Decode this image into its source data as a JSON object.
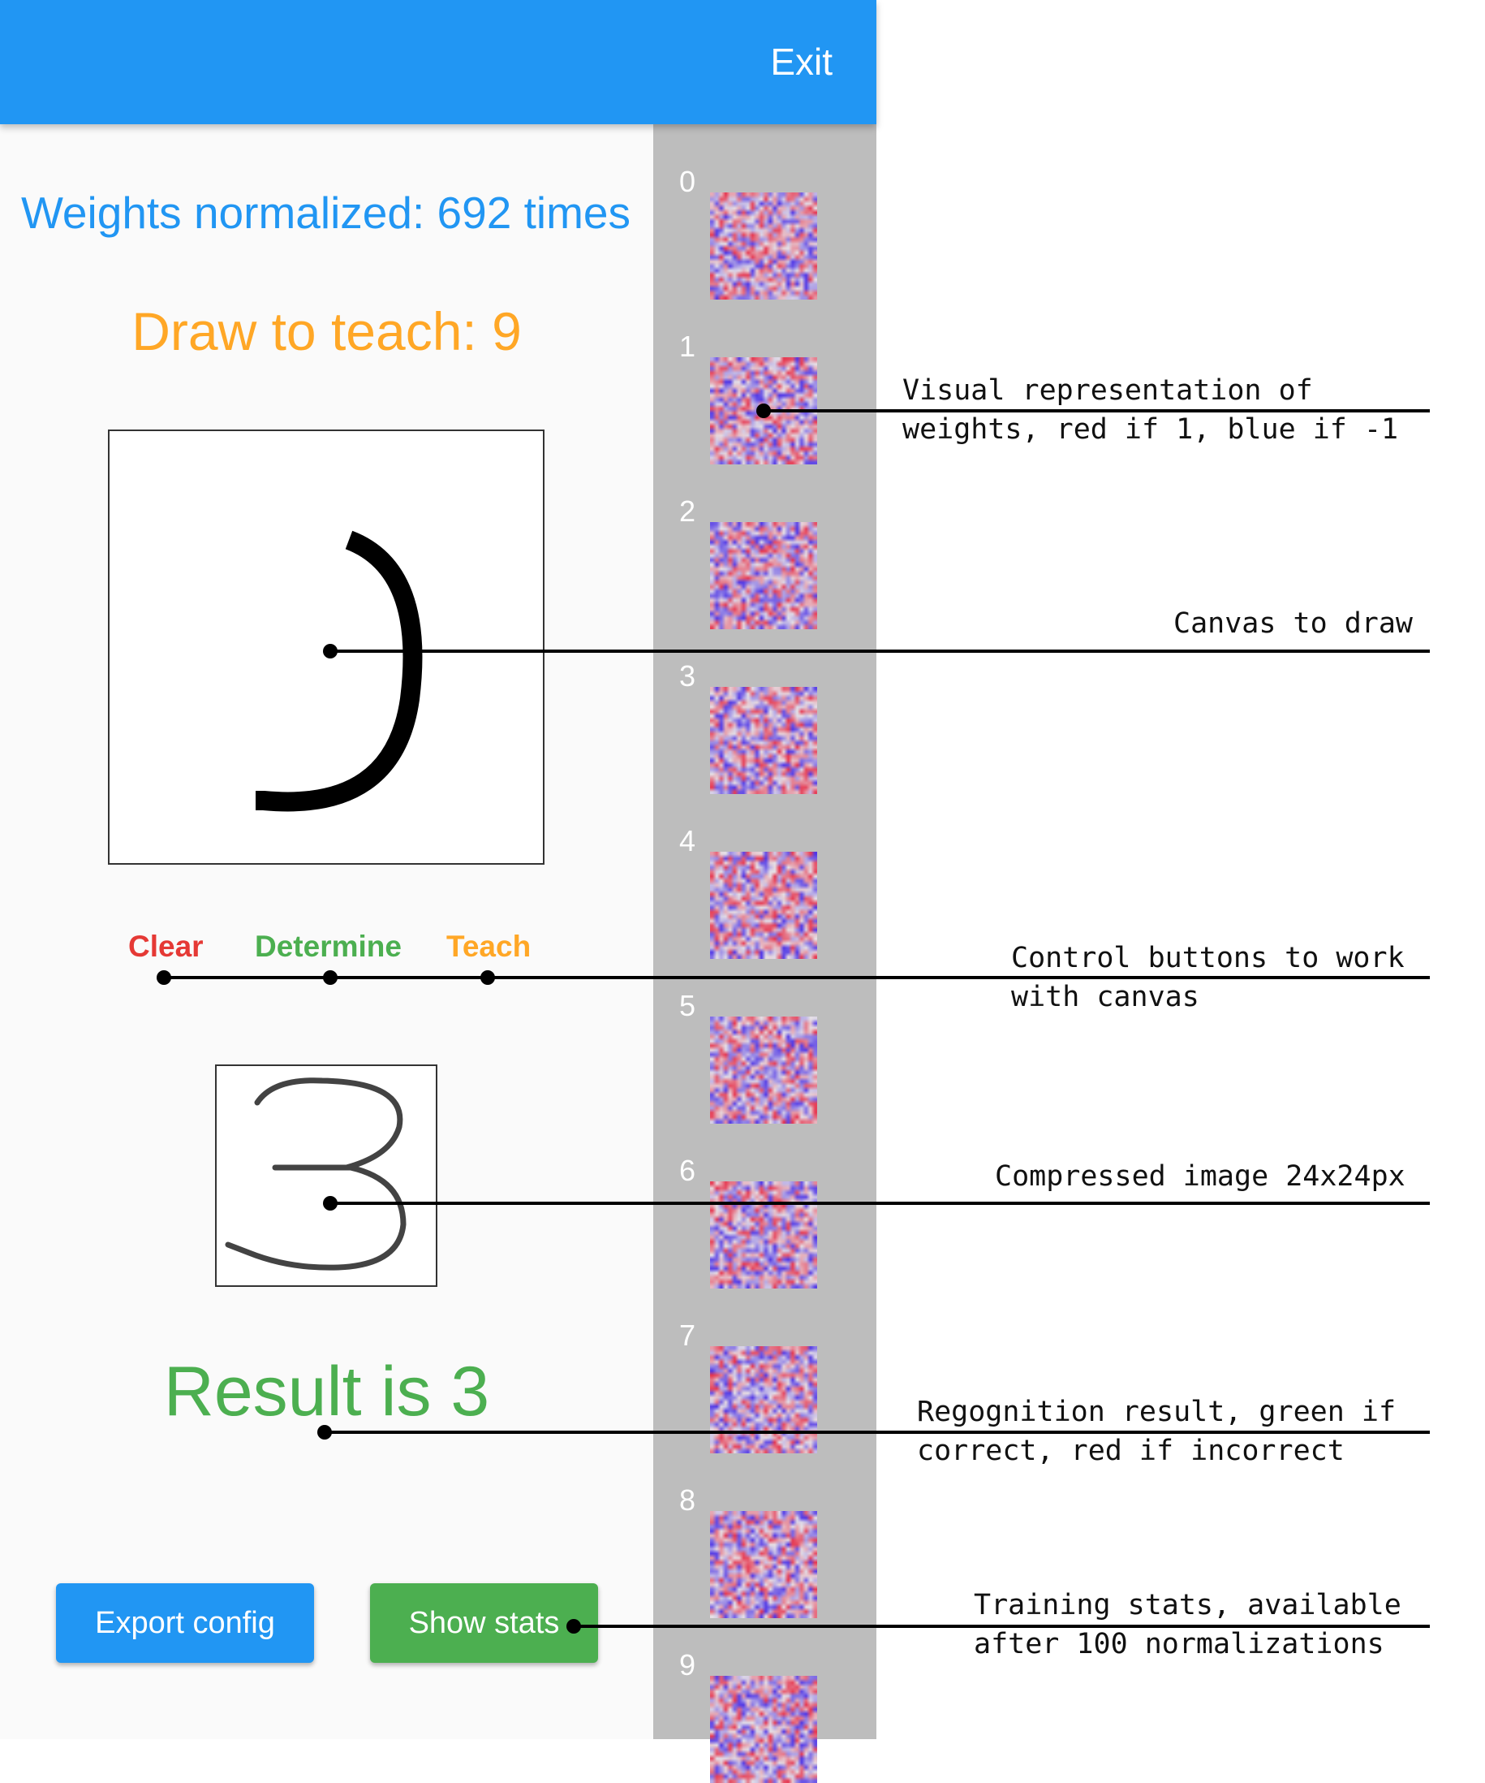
{
  "header": {
    "exit_label": "Exit",
    "color": "#2196f3"
  },
  "status": {
    "normalized_text": "Weights normalized: 692 times"
  },
  "teach": {
    "prompt": "Draw to teach: 9"
  },
  "controls": {
    "clear": "Clear",
    "determine": "Determine",
    "teach": "Teach"
  },
  "result": {
    "text": "Result is 3",
    "color": "#4caf50"
  },
  "actions": {
    "export": "Export config",
    "stats": "Show stats"
  },
  "weights": {
    "labels": [
      "0",
      "1",
      "2",
      "3",
      "4",
      "5",
      "6",
      "7",
      "8",
      "9"
    ]
  },
  "annotations": {
    "weights": "Visual representation of\nweights, red if 1, blue if -1",
    "canvas": "Canvas to draw",
    "controls": "Control buttons to work\nwith canvas",
    "compressed": "Compressed image 24x24px",
    "result": "Regognition result, green if\ncorrect, red if incorrect",
    "stats": "Training stats, available\nafter 100 normalizations"
  }
}
